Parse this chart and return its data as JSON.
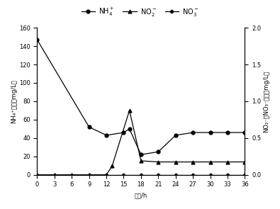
{
  "nh4_x": [
    0,
    9,
    12,
    15,
    16,
    18,
    21,
    24,
    27,
    30,
    33,
    36
  ],
  "nh4_y": [
    147,
    52,
    43,
    46,
    50,
    22,
    25,
    43,
    46,
    46,
    46,
    46
  ],
  "no2_x": [
    0,
    9,
    12,
    13,
    16,
    18,
    21,
    24,
    27,
    30,
    33,
    36
  ],
  "no2_y": [
    0.0,
    0.0,
    0.0,
    0.12,
    0.875,
    0.19,
    0.175,
    0.175,
    0.175,
    0.175,
    0.175,
    0.175
  ],
  "no3_x": [
    0,
    3,
    6,
    9,
    12,
    15,
    18,
    21,
    24,
    27,
    30,
    33,
    36
  ],
  "no3_y": [
    0.0,
    0.0,
    0.0,
    0.0,
    0.0,
    0.0,
    0.0,
    0.0,
    0.0,
    0.0,
    0.0,
    0.0,
    0.0
  ],
  "nh4_color": "#000000",
  "no2_color": "#000000",
  "no3_color": "#000000",
  "xlabel": "时间/h",
  "ylabel_left": "NH₄⁺浓度（mg/L）",
  "ylabel_right": "NO₂⁻、NO₃⁻浓度（mg/L）",
  "legend_nh4": "NH$_4^+$",
  "legend_no2": "NO$_2^-$",
  "legend_no3": "NO$_3^-$",
  "xlim": [
    0,
    36
  ],
  "ylim_left": [
    0,
    160
  ],
  "ylim_right": [
    0.0,
    2.0
  ],
  "xticks": [
    0,
    3,
    6,
    9,
    12,
    15,
    18,
    21,
    24,
    27,
    30,
    33,
    36
  ],
  "yticks_left": [
    0,
    20,
    40,
    60,
    80,
    100,
    120,
    140,
    160
  ],
  "yticks_right": [
    0.0,
    0.5,
    1.0,
    1.5,
    2.0
  ],
  "background_color": "#ffffff"
}
